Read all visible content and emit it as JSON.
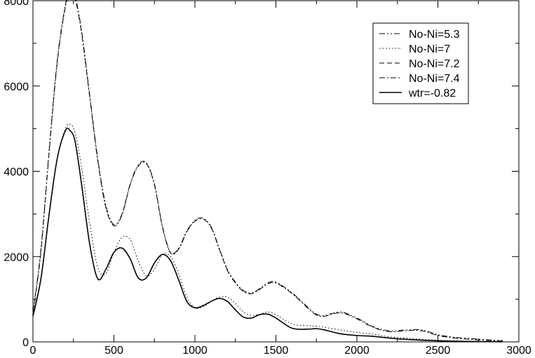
{
  "chart_data": {
    "type": "line",
    "title": "",
    "xlabel": "",
    "ylabel": "",
    "xlim": [
      0,
      3000
    ],
    "ylim": [
      0,
      8000
    ],
    "xticks": [
      "0",
      "500",
      "1000",
      "1500",
      "2000",
      "2500",
      "3000"
    ],
    "yticks": [
      "0",
      "2000",
      "4000",
      "6000",
      "8000"
    ],
    "grid": false,
    "legend_position": "top-right",
    "series": [
      {
        "name": "No-Ni=5.3",
        "dash": "dash-dot-dot",
        "color": "#000000",
        "x": [
          0,
          50,
          100,
          150,
          200,
          230,
          260,
          300,
          350,
          400,
          450,
          500,
          550,
          600,
          650,
          700,
          750,
          800,
          850,
          900,
          950,
          1000,
          1050,
          1100,
          1150,
          1200,
          1250,
          1300,
          1350,
          1400,
          1450,
          1500,
          1600,
          1700,
          1750,
          1800,
          1900,
          2000,
          2100,
          2200,
          2300,
          2400,
          2500,
          2600,
          2700,
          2800,
          2900
        ],
        "y": [
          700,
          2200,
          4500,
          6600,
          7900,
          8200,
          8100,
          7300,
          5800,
          4300,
          3200,
          2750,
          3000,
          3700,
          4150,
          4200,
          3700,
          2700,
          2100,
          2200,
          2600,
          2850,
          2900,
          2700,
          2200,
          1700,
          1400,
          1200,
          1150,
          1250,
          1380,
          1400,
          1150,
          800,
          650,
          620,
          700,
          560,
          360,
          260,
          280,
          280,
          170,
          110,
          80,
          50,
          30
        ]
      },
      {
        "name": "No-Ni=7",
        "dash": "dotted",
        "color": "#000000",
        "x": [
          0,
          50,
          100,
          150,
          200,
          230,
          260,
          300,
          350,
          400,
          450,
          500,
          550,
          600,
          650,
          700,
          750,
          800,
          850,
          900,
          950,
          1000,
          1050,
          1100,
          1150,
          1200,
          1250,
          1300,
          1350,
          1400,
          1450,
          1500,
          1600,
          1700,
          1750,
          1800,
          1900,
          2000,
          2100,
          2200,
          2300,
          2400,
          2500,
          2600,
          2700,
          2800,
          2900
        ],
        "y": [
          650,
          1500,
          3000,
          4300,
          5000,
          5100,
          4900,
          4100,
          2800,
          1750,
          1600,
          2100,
          2450,
          2400,
          1900,
          1550,
          1700,
          2050,
          2000,
          1600,
          1050,
          800,
          820,
          950,
          1050,
          1050,
          900,
          700,
          620,
          650,
          700,
          640,
          420,
          380,
          370,
          340,
          280,
          220,
          180,
          120,
          90,
          60,
          40,
          25,
          15,
          10,
          5
        ]
      },
      {
        "name": "No-Ni=7.2",
        "dash": "dashed",
        "color": "#000000",
        "x": [
          0,
          50,
          100,
          150,
          200,
          230,
          260,
          300,
          350,
          400,
          450,
          500,
          550,
          600,
          650,
          700,
          750,
          800,
          850,
          900,
          950,
          1000,
          1050,
          1100,
          1150,
          1200,
          1250,
          1300,
          1350,
          1400,
          1450,
          1500,
          1600,
          1700,
          1750,
          1800,
          1900,
          2000,
          2100,
          2200,
          2300,
          2400,
          2500,
          2600,
          2700,
          2800,
          2900
        ],
        "y": [
          640,
          1500,
          3000,
          4300,
          4950,
          4950,
          4700,
          3700,
          2300,
          1480,
          1700,
          2100,
          2200,
          1950,
          1500,
          1500,
          1850,
          2050,
          1900,
          1450,
          950,
          800,
          850,
          950,
          1020,
          950,
          750,
          580,
          560,
          640,
          650,
          560,
          320,
          300,
          310,
          280,
          190,
          150,
          130,
          90,
          60,
          40,
          25,
          15,
          10,
          5,
          3
        ]
      },
      {
        "name": "No-Ni=7.4",
        "dash": "dash-dot",
        "color": "#000000",
        "x": [
          0,
          50,
          100,
          150,
          200,
          230,
          260,
          300,
          350,
          400,
          450,
          500,
          550,
          600,
          650,
          700,
          750,
          800,
          850,
          900,
          950,
          1000,
          1050,
          1100,
          1150,
          1200,
          1250,
          1300,
          1350,
          1400,
          1450,
          1500,
          1600,
          1700,
          1750,
          1800,
          1900,
          2000,
          2100,
          2200,
          2300,
          2400,
          2500,
          2600,
          2700,
          2800,
          2900
        ],
        "y": [
          650,
          2150,
          4450,
          6550,
          7850,
          8150,
          8050,
          7250,
          5750,
          4250,
          3150,
          2720,
          2980,
          3680,
          4120,
          4180,
          3680,
          2680,
          2080,
          2180,
          2580,
          2830,
          2880,
          2680,
          2180,
          1680,
          1380,
          1180,
          1130,
          1230,
          1360,
          1380,
          1130,
          780,
          630,
          600,
          680,
          540,
          340,
          240,
          260,
          260,
          150,
          90,
          60,
          35,
          20
        ]
      },
      {
        "name": "wtr=-0.82",
        "dash": "solid",
        "color": "#000000",
        "x": [
          0,
          50,
          100,
          150,
          200,
          230,
          260,
          300,
          350,
          400,
          450,
          500,
          550,
          600,
          650,
          700,
          750,
          800,
          850,
          900,
          950,
          1000,
          1050,
          1100,
          1150,
          1200,
          1250,
          1300,
          1350,
          1400,
          1450,
          1500,
          1600,
          1700,
          1750,
          1800,
          1900,
          2000,
          2100,
          2200,
          2300,
          2400,
          2500,
          2600,
          2700,
          2800,
          2900
        ],
        "y": [
          600,
          1500,
          3000,
          4300,
          4950,
          4950,
          4700,
          3700,
          2300,
          1480,
          1700,
          2100,
          2200,
          1950,
          1500,
          1500,
          1850,
          2050,
          1900,
          1450,
          950,
          800,
          850,
          950,
          1020,
          950,
          750,
          580,
          560,
          640,
          650,
          560,
          320,
          300,
          310,
          280,
          190,
          150,
          130,
          90,
          60,
          40,
          25,
          15,
          10,
          5,
          3
        ]
      }
    ]
  }
}
